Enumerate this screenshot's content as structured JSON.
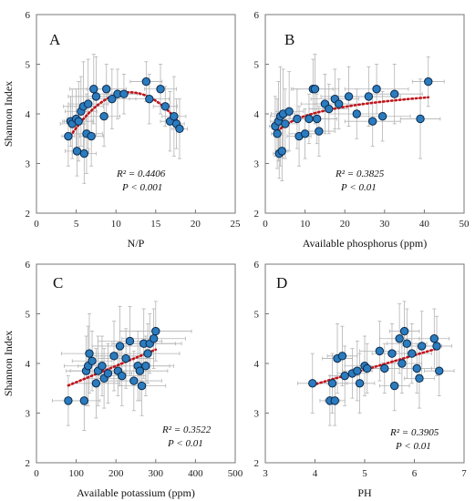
{
  "chart_data": [
    {
      "type": "scatter",
      "panel_label": "A",
      "xlabel": "N/P",
      "ylabel": "Shannon Index",
      "xlim": [
        0,
        25
      ],
      "ylim": [
        2,
        6
      ],
      "xticks": [
        0,
        5,
        10,
        15,
        20,
        25
      ],
      "yticks": [
        2,
        3,
        4,
        5,
        6
      ],
      "r2_text": "R² = 0.4406",
      "p_text": "P < 0.001",
      "trend": "quadratic",
      "points": [
        {
          "x": 4.0,
          "y": 3.55,
          "xerr": 0.8,
          "yerr": 0.6
        },
        {
          "x": 4.3,
          "y": 3.85,
          "xerr": 1.0,
          "yerr": 0.5
        },
        {
          "x": 4.5,
          "y": 3.8,
          "xerr": 1.5,
          "yerr": 0.7
        },
        {
          "x": 5.0,
          "y": 3.9,
          "xerr": 1.2,
          "yerr": 0.6
        },
        {
          "x": 5.1,
          "y": 3.25,
          "xerr": 1.5,
          "yerr": 0.5
        },
        {
          "x": 5.3,
          "y": 3.85,
          "xerr": 1.8,
          "yerr": 0.8
        },
        {
          "x": 5.6,
          "y": 4.05,
          "xerr": 2.0,
          "yerr": 0.7
        },
        {
          "x": 5.9,
          "y": 4.15,
          "xerr": 2.5,
          "yerr": 0.9
        },
        {
          "x": 6.0,
          "y": 3.2,
          "xerr": 1.5,
          "yerr": 0.6
        },
        {
          "x": 6.3,
          "y": 3.6,
          "xerr": 2.0,
          "yerr": 0.8
        },
        {
          "x": 6.5,
          "y": 4.2,
          "xerr": 2.5,
          "yerr": 0.9
        },
        {
          "x": 6.9,
          "y": 3.55,
          "xerr": 1.5,
          "yerr": 0.6
        },
        {
          "x": 7.2,
          "y": 4.5,
          "xerr": 3.0,
          "yerr": 0.7
        },
        {
          "x": 7.5,
          "y": 4.35,
          "xerr": 3.5,
          "yerr": 0.8
        },
        {
          "x": 8.5,
          "y": 3.95,
          "xerr": 2.0,
          "yerr": 0.6
        },
        {
          "x": 8.8,
          "y": 4.5,
          "xerr": 2.5,
          "yerr": 0.5
        },
        {
          "x": 9.5,
          "y": 4.3,
          "xerr": 3.0,
          "yerr": 0.6
        },
        {
          "x": 10.2,
          "y": 4.4,
          "xerr": 2.5,
          "yerr": 0.5
        },
        {
          "x": 11.0,
          "y": 4.4,
          "xerr": 2.0,
          "yerr": 0.4
        },
        {
          "x": 13.8,
          "y": 4.65,
          "xerr": 2.0,
          "yerr": 0.4
        },
        {
          "x": 14.2,
          "y": 4.3,
          "xerr": 2.5,
          "yerr": 0.5
        },
        {
          "x": 15.6,
          "y": 4.5,
          "xerr": 2.0,
          "yerr": 0.5
        },
        {
          "x": 16.2,
          "y": 4.15,
          "xerr": 1.5,
          "yerr": 0.4
        },
        {
          "x": 16.8,
          "y": 3.85,
          "xerr": 1.2,
          "yerr": 0.6
        },
        {
          "x": 17.3,
          "y": 3.95,
          "xerr": 1.5,
          "yerr": 0.8
        },
        {
          "x": 17.6,
          "y": 3.8,
          "xerr": 1.0,
          "yerr": 0.5
        },
        {
          "x": 18.0,
          "y": 3.7,
          "xerr": 1.0,
          "yerr": 0.6
        }
      ]
    },
    {
      "type": "scatter",
      "panel_label": "B",
      "xlabel": "Available phosphorus (ppm)",
      "ylabel": "",
      "xlim": [
        0,
        50
      ],
      "ylim": [
        2,
        6
      ],
      "xticks": [
        0,
        10,
        20,
        30,
        40,
        50
      ],
      "yticks": [
        2,
        3,
        4,
        5,
        6
      ],
      "r2_text": "R² = 0.3825",
      "p_text": "P < 0.01",
      "trend": "logarithmic",
      "points": [
        {
          "x": 2.5,
          "y": 3.75,
          "xerr": 1.5,
          "yerr": 0.6
        },
        {
          "x": 3.0,
          "y": 3.6,
          "xerr": 1.5,
          "yerr": 0.7
        },
        {
          "x": 3.3,
          "y": 3.85,
          "xerr": 2.0,
          "yerr": 0.8
        },
        {
          "x": 3.5,
          "y": 3.2,
          "xerr": 1.5,
          "yerr": 0.5
        },
        {
          "x": 3.8,
          "y": 3.95,
          "xerr": 2.5,
          "yerr": 1.0
        },
        {
          "x": 4.2,
          "y": 3.25,
          "xerr": 1.5,
          "yerr": 0.6
        },
        {
          "x": 4.5,
          "y": 4.0,
          "xerr": 3.0,
          "yerr": 0.9
        },
        {
          "x": 5.0,
          "y": 3.8,
          "xerr": 3.0,
          "yerr": 0.7
        },
        {
          "x": 6.0,
          "y": 4.05,
          "xerr": 3.5,
          "yerr": 0.8
        },
        {
          "x": 8.0,
          "y": 3.9,
          "xerr": 4.0,
          "yerr": 0.6
        },
        {
          "x": 8.5,
          "y": 3.55,
          "xerr": 3.0,
          "yerr": 0.6
        },
        {
          "x": 10.0,
          "y": 3.6,
          "xerr": 4.0,
          "yerr": 0.5
        },
        {
          "x": 11.0,
          "y": 3.9,
          "xerr": 5.0,
          "yerr": 0.5
        },
        {
          "x": 12.0,
          "y": 4.5,
          "xerr": 5.0,
          "yerr": 0.6
        },
        {
          "x": 12.5,
          "y": 4.5,
          "xerr": 6.0,
          "yerr": 0.7
        },
        {
          "x": 13.0,
          "y": 3.9,
          "xerr": 5.0,
          "yerr": 0.5
        },
        {
          "x": 13.5,
          "y": 3.65,
          "xerr": 4.0,
          "yerr": 0.5
        },
        {
          "x": 15.0,
          "y": 4.2,
          "xerr": 6.0,
          "yerr": 0.6
        },
        {
          "x": 16.0,
          "y": 4.1,
          "xerr": 5.0,
          "yerr": 0.5
        },
        {
          "x": 17.5,
          "y": 4.3,
          "xerr": 6.0,
          "yerr": 0.6
        },
        {
          "x": 18.5,
          "y": 4.2,
          "xerr": 6.0,
          "yerr": 0.5
        },
        {
          "x": 21.0,
          "y": 4.35,
          "xerr": 7.0,
          "yerr": 0.6
        },
        {
          "x": 23.0,
          "y": 4.0,
          "xerr": 7.0,
          "yerr": 0.5
        },
        {
          "x": 26.0,
          "y": 4.35,
          "xerr": 8.0,
          "yerr": 0.6
        },
        {
          "x": 27.0,
          "y": 3.85,
          "xerr": 7.0,
          "yerr": 0.5
        },
        {
          "x": 28.0,
          "y": 4.5,
          "xerr": 8.0,
          "yerr": 0.5
        },
        {
          "x": 29.5,
          "y": 3.95,
          "xerr": 7.0,
          "yerr": 0.5
        },
        {
          "x": 32.5,
          "y": 4.4,
          "xerr": 7.0,
          "yerr": 0.6
        },
        {
          "x": 39.0,
          "y": 3.9,
          "xerr": 5.0,
          "yerr": 0.8
        },
        {
          "x": 41.0,
          "y": 4.65,
          "xerr": 4.0,
          "yerr": 0.5
        }
      ]
    },
    {
      "type": "scatter",
      "panel_label": "C",
      "xlabel": "Available potassium (ppm)",
      "ylabel": "Shannon Index",
      "xlim": [
        0,
        500
      ],
      "ylim": [
        2,
        6
      ],
      "xticks": [
        0,
        100,
        200,
        300,
        400,
        500
      ],
      "yticks": [
        2,
        3,
        4,
        5,
        6
      ],
      "r2_text": "R² = 0.3522",
      "p_text": "P < 0.01",
      "trend": "linear",
      "points": [
        {
          "x": 80,
          "y": 3.25,
          "xerr": 40,
          "yerr": 0.5
        },
        {
          "x": 120,
          "y": 3.25,
          "xerr": 40,
          "yerr": 0.6
        },
        {
          "x": 125,
          "y": 3.85,
          "xerr": 50,
          "yerr": 0.7
        },
        {
          "x": 130,
          "y": 3.95,
          "xerr": 60,
          "yerr": 0.8
        },
        {
          "x": 133,
          "y": 4.2,
          "xerr": 70,
          "yerr": 0.8
        },
        {
          "x": 140,
          "y": 4.05,
          "xerr": 50,
          "yerr": 0.6
        },
        {
          "x": 150,
          "y": 3.6,
          "xerr": 60,
          "yerr": 0.7
        },
        {
          "x": 155,
          "y": 3.85,
          "xerr": 70,
          "yerr": 0.7
        },
        {
          "x": 165,
          "y": 3.95,
          "xerr": 60,
          "yerr": 0.6
        },
        {
          "x": 170,
          "y": 3.7,
          "xerr": 50,
          "yerr": 0.6
        },
        {
          "x": 180,
          "y": 3.8,
          "xerr": 60,
          "yerr": 0.6
        },
        {
          "x": 195,
          "y": 4.15,
          "xerr": 70,
          "yerr": 0.7
        },
        {
          "x": 205,
          "y": 3.85,
          "xerr": 60,
          "yerr": 0.5
        },
        {
          "x": 210,
          "y": 4.35,
          "xerr": 70,
          "yerr": 0.8
        },
        {
          "x": 215,
          "y": 3.75,
          "xerr": 60,
          "yerr": 0.6
        },
        {
          "x": 225,
          "y": 4.1,
          "xerr": 70,
          "yerr": 0.6
        },
        {
          "x": 235,
          "y": 4.45,
          "xerr": 80,
          "yerr": 0.7
        },
        {
          "x": 245,
          "y": 3.65,
          "xerr": 70,
          "yerr": 0.6
        },
        {
          "x": 255,
          "y": 3.95,
          "xerr": 80,
          "yerr": 0.7
        },
        {
          "x": 260,
          "y": 3.85,
          "xerr": 70,
          "yerr": 0.6
        },
        {
          "x": 265,
          "y": 3.55,
          "xerr": 60,
          "yerr": 0.6
        },
        {
          "x": 270,
          "y": 4.4,
          "xerr": 80,
          "yerr": 0.7
        },
        {
          "x": 275,
          "y": 3.95,
          "xerr": 70,
          "yerr": 0.6
        },
        {
          "x": 280,
          "y": 4.2,
          "xerr": 80,
          "yerr": 0.6
        },
        {
          "x": 285,
          "y": 4.4,
          "xerr": 80,
          "yerr": 0.6
        },
        {
          "x": 295,
          "y": 4.5,
          "xerr": 80,
          "yerr": 0.6
        },
        {
          "x": 300,
          "y": 4.65,
          "xerr": 90,
          "yerr": 0.6
        }
      ]
    },
    {
      "type": "scatter",
      "panel_label": "D",
      "xlabel": "PH",
      "ylabel": "",
      "xlim": [
        3,
        7
      ],
      "ylim": [
        2,
        6
      ],
      "xticks": [
        3,
        4,
        5,
        6,
        7
      ],
      "yticks": [
        2,
        3,
        4,
        5,
        6
      ],
      "r2_text": "R² = 0.3905",
      "p_text": "P < 0.01",
      "trend": "linear",
      "points": [
        {
          "x": 3.95,
          "y": 3.6,
          "xerr": 0.3,
          "yerr": 0.6
        },
        {
          "x": 4.3,
          "y": 3.25,
          "xerr": 0.2,
          "yerr": 0.5
        },
        {
          "x": 4.35,
          "y": 3.6,
          "xerr": 0.3,
          "yerr": 0.6
        },
        {
          "x": 4.4,
          "y": 3.25,
          "xerr": 0.2,
          "yerr": 0.5
        },
        {
          "x": 4.45,
          "y": 4.1,
          "xerr": 0.3,
          "yerr": 0.7
        },
        {
          "x": 4.55,
          "y": 4.15,
          "xerr": 0.3,
          "yerr": 0.6
        },
        {
          "x": 4.6,
          "y": 3.75,
          "xerr": 0.3,
          "yerr": 0.6
        },
        {
          "x": 4.75,
          "y": 3.8,
          "xerr": 0.3,
          "yerr": 0.5
        },
        {
          "x": 4.85,
          "y": 3.85,
          "xerr": 0.3,
          "yerr": 0.6
        },
        {
          "x": 4.9,
          "y": 3.6,
          "xerr": 0.3,
          "yerr": 0.6
        },
        {
          "x": 5.0,
          "y": 3.95,
          "xerr": 0.4,
          "yerr": 0.6
        },
        {
          "x": 5.05,
          "y": 3.9,
          "xerr": 0.3,
          "yerr": 0.5
        },
        {
          "x": 5.3,
          "y": 4.25,
          "xerr": 0.4,
          "yerr": 0.6
        },
        {
          "x": 5.4,
          "y": 3.9,
          "xerr": 0.3,
          "yerr": 0.5
        },
        {
          "x": 5.55,
          "y": 4.2,
          "xerr": 0.4,
          "yerr": 0.6
        },
        {
          "x": 5.6,
          "y": 3.55,
          "xerr": 0.3,
          "yerr": 0.5
        },
        {
          "x": 5.7,
          "y": 4.5,
          "xerr": 0.4,
          "yerr": 0.7
        },
        {
          "x": 5.75,
          "y": 4.0,
          "xerr": 0.4,
          "yerr": 0.6
        },
        {
          "x": 5.8,
          "y": 4.65,
          "xerr": 0.3,
          "yerr": 0.6
        },
        {
          "x": 5.85,
          "y": 4.4,
          "xerr": 0.4,
          "yerr": 0.7
        },
        {
          "x": 5.95,
          "y": 4.2,
          "xerr": 0.4,
          "yerr": 0.6
        },
        {
          "x": 6.05,
          "y": 3.9,
          "xerr": 0.3,
          "yerr": 0.5
        },
        {
          "x": 6.1,
          "y": 3.7,
          "xerr": 0.3,
          "yerr": 0.6
        },
        {
          "x": 6.15,
          "y": 4.35,
          "xerr": 0.4,
          "yerr": 0.7
        },
        {
          "x": 6.4,
          "y": 4.5,
          "xerr": 0.3,
          "yerr": 0.6
        },
        {
          "x": 6.45,
          "y": 4.35,
          "xerr": 0.3,
          "yerr": 0.6
        },
        {
          "x": 6.5,
          "y": 3.85,
          "xerr": 0.3,
          "yerr": 0.5
        }
      ]
    }
  ],
  "colors": {
    "marker_fill": "#2b7bbf",
    "marker_stroke": "#0b2a4a",
    "trend": "#c0131b",
    "errorbar": "#b3b3b3",
    "axis": "#777777"
  }
}
